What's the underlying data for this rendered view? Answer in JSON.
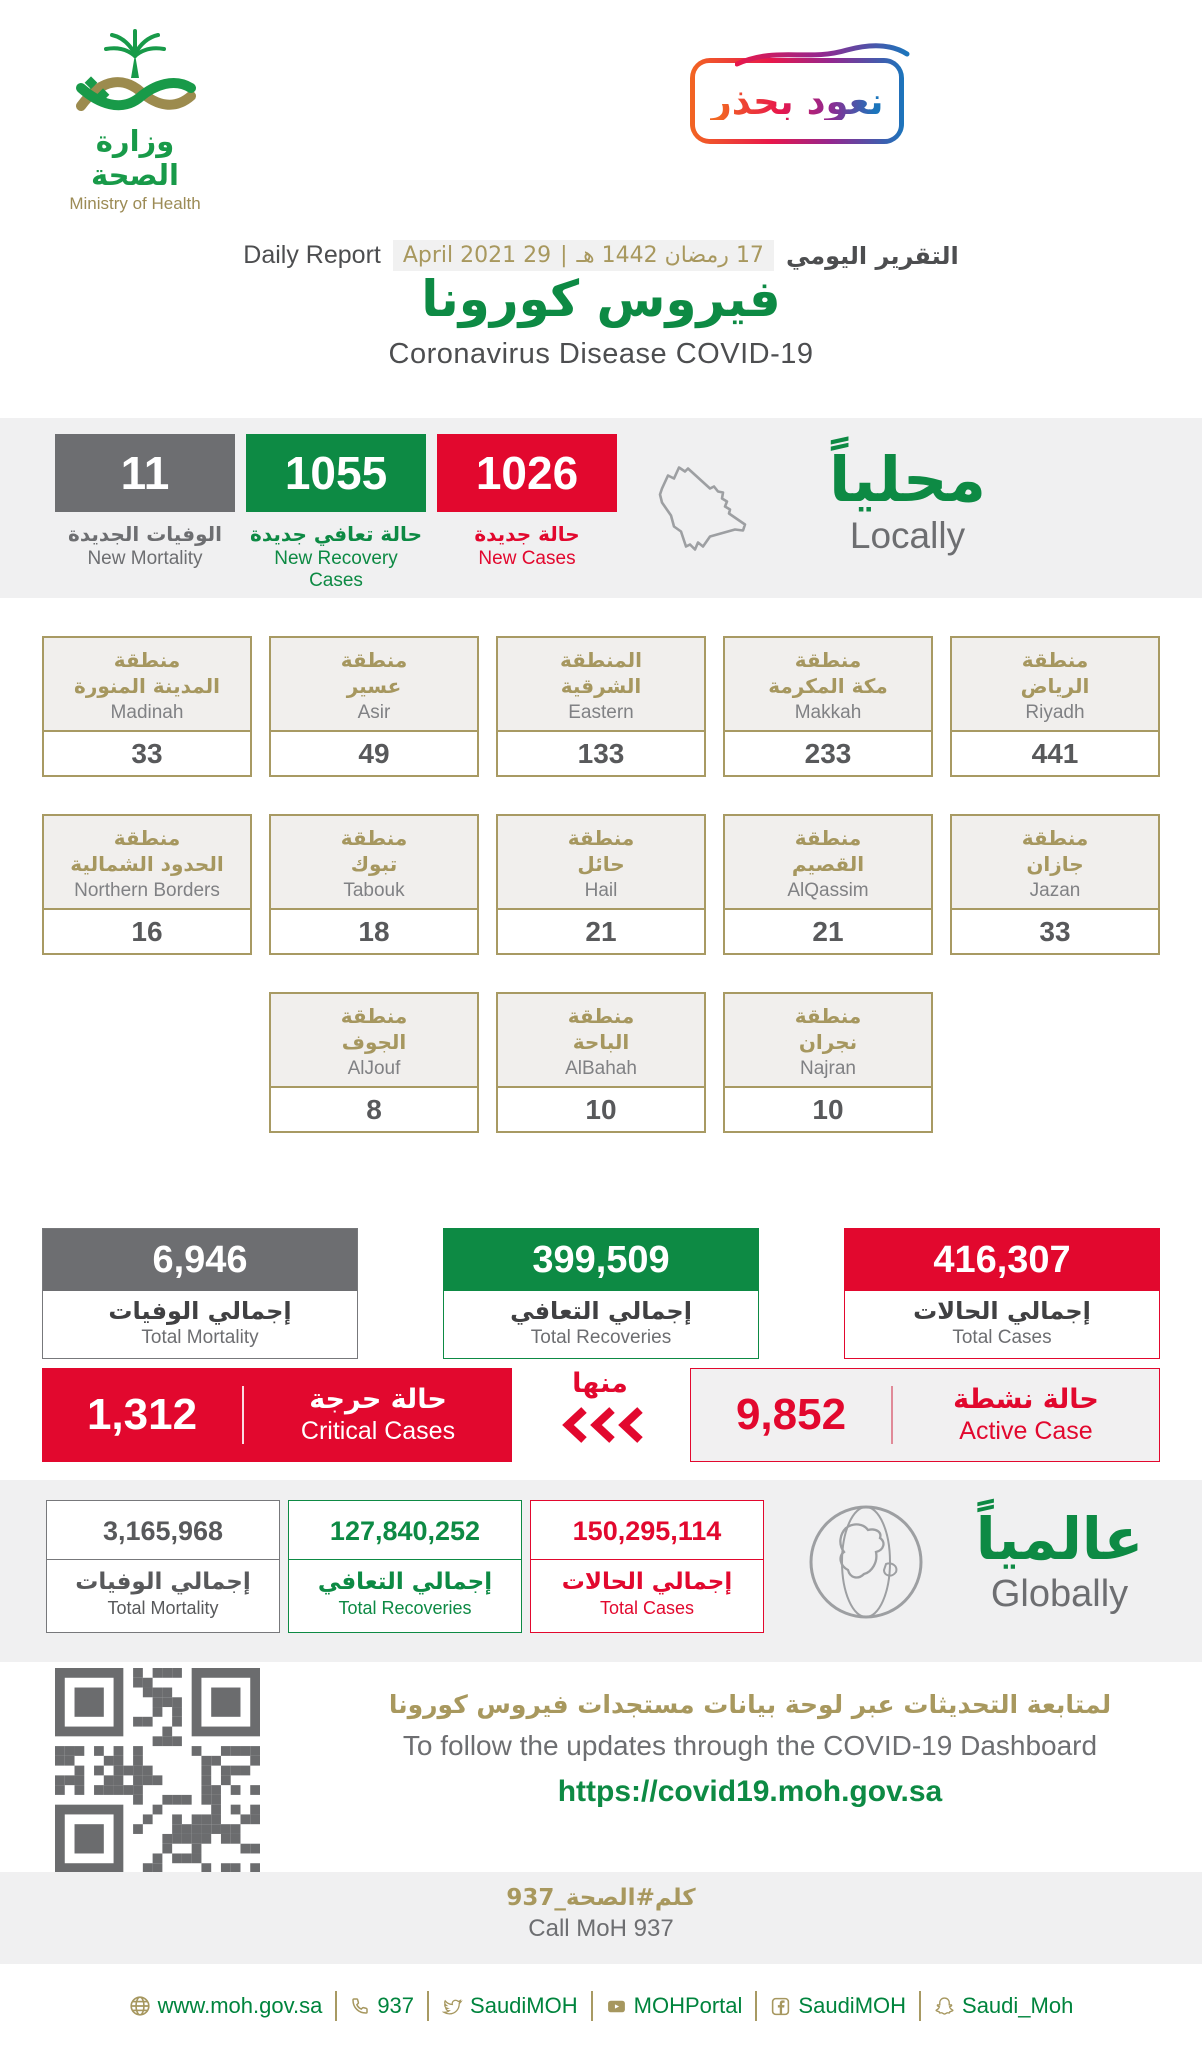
{
  "header": {
    "logo_ar": "وزارة الصحة",
    "logo_en": "Ministry of Health",
    "badge_text": "نعود بحذر",
    "report_label_ar": "التقرير اليومي",
    "date_hijri": "17 رمضان 1442 هـ",
    "date_sep": "|",
    "date_greg": "29 April 2021",
    "report_label_en": "Daily Report",
    "title_ar": "فيروس كورونا",
    "title_en": "Coronavirus Disease COVID-19"
  },
  "locally": {
    "heading_ar": "محلياً",
    "heading_en": "Locally",
    "stats": [
      {
        "value": "11",
        "label_ar": "الوفيات الجديدة",
        "label_en": "New Mortality",
        "color": "#6d6e71"
      },
      {
        "value": "1055",
        "label_ar": "حالة تعافي جديدة",
        "label_en": "New Recovery Cases",
        "color": "#0d8a44"
      },
      {
        "value": "1026",
        "label_ar": "حالة جديدة",
        "label_en": "New Cases",
        "color": "#e2082e"
      }
    ]
  },
  "regions": {
    "row1": [
      {
        "ar1": "منطقة",
        "ar2": "المدينة المنورة",
        "en": "Madinah",
        "value": "33"
      },
      {
        "ar1": "منطقة",
        "ar2": "عسير",
        "en": "Asir",
        "value": "49"
      },
      {
        "ar1": "المنطقة",
        "ar2": "الشرقية",
        "en": "Eastern",
        "value": "133"
      },
      {
        "ar1": "منطقة",
        "ar2": "مكة المكرمة",
        "en": "Makkah",
        "value": "233"
      },
      {
        "ar1": "منطقة",
        "ar2": "الرياض",
        "en": "Riyadh",
        "value": "441"
      }
    ],
    "row2": [
      {
        "ar1": "منطقة",
        "ar2": "الحدود الشمالية",
        "en": "Northern Borders",
        "value": "16"
      },
      {
        "ar1": "منطقة",
        "ar2": "تبوك",
        "en": "Tabouk",
        "value": "18"
      },
      {
        "ar1": "منطقة",
        "ar2": "حائل",
        "en": "Hail",
        "value": "21"
      },
      {
        "ar1": "منطقة",
        "ar2": "القصيم",
        "en": "AlQassim",
        "value": "21"
      },
      {
        "ar1": "منطقة",
        "ar2": "جازان",
        "en": "Jazan",
        "value": "33"
      }
    ],
    "row3": [
      {
        "ar1": "منطقة",
        "ar2": "الجوف",
        "en": "AlJouf",
        "value": "8"
      },
      {
        "ar1": "منطقة",
        "ar2": "الباحة",
        "en": "AlBahah",
        "value": "10"
      },
      {
        "ar1": "منطقة",
        "ar2": "نجران",
        "en": "Najran",
        "value": "10"
      }
    ]
  },
  "totals": [
    {
      "value": "6,946",
      "label_ar": "إجمالي الوفيات",
      "label_en": "Total Mortality",
      "color": "#6d6e71"
    },
    {
      "value": "399,509",
      "label_ar": "إجمالي التعافي",
      "label_en": "Total Recoveries",
      "color": "#0d8a44"
    },
    {
      "value": "416,307",
      "label_ar": "إجمالي الحالات",
      "label_en": "Total Cases",
      "color": "#e2082e"
    }
  ],
  "critical": {
    "value": "1,312",
    "label_ar": "حالة حرجة",
    "label_en": "Critical Cases"
  },
  "of_which": {
    "label_ar": "منها"
  },
  "active": {
    "value": "9,852",
    "label_ar": "حالة نشطة",
    "label_en": "Active Case"
  },
  "globally": {
    "heading_ar": "عالمياً",
    "heading_en": "Globally",
    "stats": [
      {
        "value": "3,165,968",
        "label_ar": "إجمالي الوفيات",
        "label_en": "Total Mortality",
        "color": "#6d6e71"
      },
      {
        "value": "127,840,252",
        "label_ar": "إجمالي التعافي",
        "label_en": "Total Recoveries",
        "color": "#0d8a44"
      },
      {
        "value": "150,295,114",
        "label_ar": "إجمالي الحالات",
        "label_en": "Total Cases",
        "color": "#e2082e"
      }
    ]
  },
  "dashboard": {
    "line_ar": "لمتابعة التحديثات عبر لوحة بيانات مستجدات فيروس كورونا",
    "line_en": "To follow the updates through the COVID-19 Dashboard",
    "url": "https://covid19.moh.gov.sa"
  },
  "call": {
    "ar": "كلم#الصحة_937",
    "en": "Call MoH 937"
  },
  "footer": {
    "items": [
      {
        "icon": "globe-icon",
        "label": "www.moh.gov.sa"
      },
      {
        "icon": "phone-icon",
        "label": "937"
      },
      {
        "icon": "twitter-icon",
        "label": "SaudiMOH"
      },
      {
        "icon": "youtube-icon",
        "label": "MOHPortal"
      },
      {
        "icon": "facebook-icon",
        "label": "SaudiMOH"
      },
      {
        "icon": "snapchat-icon",
        "label": "Saudi_Moh"
      }
    ]
  },
  "colors": {
    "green": "#0d8a44",
    "red": "#e2082e",
    "gray": "#6d6e71",
    "gold": "#a6975f",
    "band_bg": "#f0f0f1",
    "footer_green": "#00843d"
  }
}
